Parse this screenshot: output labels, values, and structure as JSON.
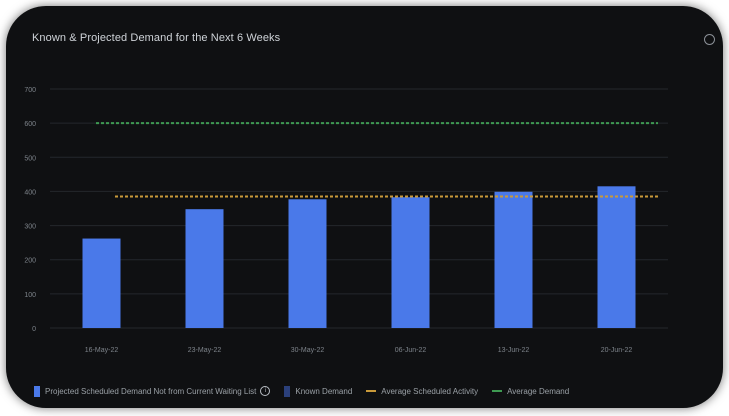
{
  "chart_data": {
    "type": "bar",
    "title": "Known & Projected Demand for the Next 6 Weeks",
    "categories": [
      "16-May-22",
      "23-May-22",
      "30-May-22",
      "06-Jun-22",
      "13-Jun-22",
      "20-Jun-22"
    ],
    "series": [
      {
        "name": "Projected Scheduled Demand Not from Current Waiting List",
        "values": [
          262,
          348,
          377,
          383,
          399,
          415
        ],
        "color": "#4a79e9"
      },
      {
        "name": "Known Demand",
        "values": [
          0,
          0,
          0,
          0,
          0,
          0
        ],
        "color": "#3a5bb4"
      }
    ],
    "reference_lines": [
      {
        "name": "Average Scheduled Activity",
        "value": 600,
        "color": "#3e9a52"
      },
      {
        "name": "Average Demand",
        "value": 385,
        "color": "#c99a3a"
      }
    ],
    "y_ticks": [
      0,
      100,
      200,
      300,
      400,
      500,
      600,
      700
    ],
    "ylim": [
      0,
      700
    ],
    "grid": true,
    "legend_position": "bottom-left"
  }
}
